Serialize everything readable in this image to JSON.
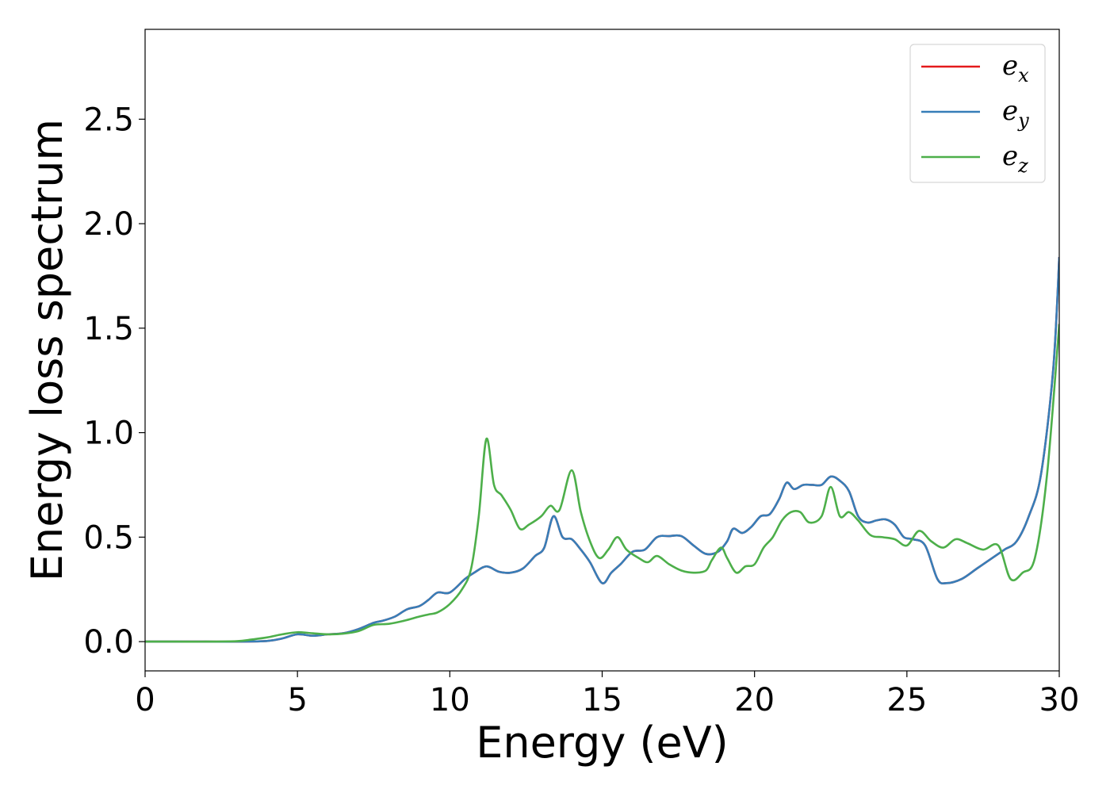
{
  "chart_data": {
    "type": "line",
    "title": "",
    "xlabel": "Energy (eV)",
    "ylabel": "Energy loss spectrum",
    "xlim": [
      0,
      30
    ],
    "ylim": [
      -0.14,
      2.93
    ],
    "xticks": [
      0,
      5,
      10,
      15,
      20,
      25,
      30
    ],
    "xtick_labels": [
      "0",
      "5",
      "10",
      "15",
      "20",
      "25",
      "30"
    ],
    "yticks": [
      0.0,
      0.5,
      1.0,
      1.5,
      2.0,
      2.5
    ],
    "ytick_labels": [
      "0.0",
      "0.5",
      "1.0",
      "1.5",
      "2.0",
      "2.5"
    ],
    "grid": false,
    "legend_position": "top-right",
    "series": [
      {
        "name": "e",
        "subscript": "x",
        "color": "#e41a1c",
        "x": [
          0,
          1,
          2,
          3,
          4,
          4.5,
          5,
          5.5,
          6,
          6.5,
          7,
          7.5,
          7.8,
          8.2,
          8.6,
          9,
          9.3,
          9.6,
          10,
          10.5,
          10.8,
          11.2,
          11.6,
          12,
          12.4,
          12.8,
          13.1,
          13.4,
          13.7,
          14,
          14.3,
          14.6,
          15,
          15.3,
          15.6,
          16,
          16.4,
          16.8,
          17.2,
          17.6,
          18,
          18.4,
          18.8,
          19.1,
          19.3,
          19.6,
          19.9,
          20.2,
          20.5,
          20.8,
          21.05,
          21.3,
          21.6,
          21.9,
          22.2,
          22.5,
          22.8,
          23.1,
          23.4,
          23.7,
          24,
          24.3,
          24.6,
          24.9,
          25.2,
          25.6,
          26,
          26.3,
          26.8,
          27.3,
          27.8,
          28.2,
          28.6,
          29,
          29.4,
          29.8,
          30
        ],
        "y": [
          0.0,
          0.0,
          0.0,
          0.0,
          0.003,
          0.015,
          0.035,
          0.028,
          0.035,
          0.04,
          0.06,
          0.09,
          0.1,
          0.12,
          0.155,
          0.17,
          0.2,
          0.235,
          0.235,
          0.3,
          0.33,
          0.36,
          0.335,
          0.33,
          0.35,
          0.41,
          0.45,
          0.6,
          0.5,
          0.49,
          0.44,
          0.38,
          0.28,
          0.33,
          0.37,
          0.43,
          0.44,
          0.5,
          0.505,
          0.505,
          0.46,
          0.42,
          0.43,
          0.48,
          0.54,
          0.52,
          0.55,
          0.6,
          0.61,
          0.68,
          0.76,
          0.73,
          0.75,
          0.75,
          0.75,
          0.79,
          0.77,
          0.72,
          0.6,
          0.57,
          0.58,
          0.585,
          0.56,
          0.5,
          0.49,
          0.46,
          0.3,
          0.28,
          0.3,
          0.35,
          0.4,
          0.44,
          0.48,
          0.6,
          0.8,
          1.3,
          1.84
        ]
      },
      {
        "name": "e",
        "subscript": "y",
        "color": "#377eb8",
        "x": [
          0,
          1,
          2,
          3,
          4,
          4.5,
          5,
          5.5,
          6,
          6.5,
          7,
          7.5,
          7.8,
          8.2,
          8.6,
          9,
          9.3,
          9.6,
          10,
          10.5,
          10.8,
          11.2,
          11.6,
          12,
          12.4,
          12.8,
          13.1,
          13.4,
          13.7,
          14,
          14.3,
          14.6,
          15,
          15.3,
          15.6,
          16,
          16.4,
          16.8,
          17.2,
          17.6,
          18,
          18.4,
          18.8,
          19.1,
          19.3,
          19.6,
          19.9,
          20.2,
          20.5,
          20.8,
          21.05,
          21.3,
          21.6,
          21.9,
          22.2,
          22.5,
          22.8,
          23.1,
          23.4,
          23.7,
          24,
          24.3,
          24.6,
          24.9,
          25.2,
          25.6,
          26,
          26.3,
          26.8,
          27.3,
          27.8,
          28.2,
          28.6,
          29,
          29.4,
          29.8,
          30
        ],
        "y": [
          0.0,
          0.0,
          0.0,
          0.0,
          0.003,
          0.015,
          0.035,
          0.028,
          0.035,
          0.04,
          0.06,
          0.09,
          0.1,
          0.12,
          0.155,
          0.17,
          0.2,
          0.235,
          0.235,
          0.3,
          0.33,
          0.36,
          0.335,
          0.33,
          0.35,
          0.41,
          0.45,
          0.6,
          0.5,
          0.49,
          0.44,
          0.38,
          0.28,
          0.33,
          0.37,
          0.43,
          0.44,
          0.5,
          0.505,
          0.505,
          0.46,
          0.42,
          0.43,
          0.48,
          0.54,
          0.52,
          0.55,
          0.6,
          0.61,
          0.68,
          0.76,
          0.73,
          0.75,
          0.75,
          0.75,
          0.79,
          0.77,
          0.72,
          0.6,
          0.57,
          0.58,
          0.585,
          0.56,
          0.5,
          0.49,
          0.46,
          0.3,
          0.28,
          0.3,
          0.35,
          0.4,
          0.44,
          0.48,
          0.6,
          0.8,
          1.3,
          1.84
        ]
      },
      {
        "name": "e",
        "subscript": "z",
        "color": "#4daf4a",
        "x": [
          0,
          1,
          2,
          3,
          3.5,
          4,
          4.5,
          5,
          5.5,
          6,
          6.5,
          7,
          7.5,
          8,
          8.5,
          9,
          9.3,
          9.6,
          10,
          10.4,
          10.7,
          10.95,
          11.2,
          11.45,
          11.7,
          12,
          12.3,
          12.6,
          13,
          13.3,
          13.6,
          14,
          14.3,
          14.6,
          14.9,
          15.2,
          15.5,
          15.8,
          16.2,
          16.5,
          16.8,
          17.2,
          17.6,
          18,
          18.4,
          18.6,
          18.9,
          19.1,
          19.4,
          19.7,
          20,
          20.3,
          20.6,
          20.9,
          21.2,
          21.5,
          21.8,
          22.2,
          22.5,
          22.8,
          23.1,
          23.4,
          23.8,
          24.2,
          24.6,
          25,
          25.4,
          25.8,
          26.2,
          26.6,
          27,
          27.5,
          28,
          28.4,
          28.8,
          29.2,
          29.6,
          30
        ],
        "y": [
          0.0,
          0.0,
          0.0,
          0.002,
          0.01,
          0.02,
          0.035,
          0.045,
          0.04,
          0.035,
          0.038,
          0.05,
          0.08,
          0.085,
          0.1,
          0.12,
          0.13,
          0.14,
          0.18,
          0.25,
          0.35,
          0.6,
          0.97,
          0.75,
          0.7,
          0.63,
          0.54,
          0.56,
          0.6,
          0.65,
          0.63,
          0.82,
          0.62,
          0.48,
          0.4,
          0.44,
          0.5,
          0.44,
          0.4,
          0.38,
          0.41,
          0.37,
          0.34,
          0.33,
          0.34,
          0.39,
          0.45,
          0.4,
          0.33,
          0.36,
          0.37,
          0.45,
          0.5,
          0.58,
          0.62,
          0.62,
          0.57,
          0.6,
          0.74,
          0.6,
          0.62,
          0.58,
          0.51,
          0.5,
          0.49,
          0.46,
          0.53,
          0.48,
          0.45,
          0.49,
          0.47,
          0.44,
          0.46,
          0.3,
          0.33,
          0.4,
          0.8,
          1.52
        ]
      }
    ]
  }
}
